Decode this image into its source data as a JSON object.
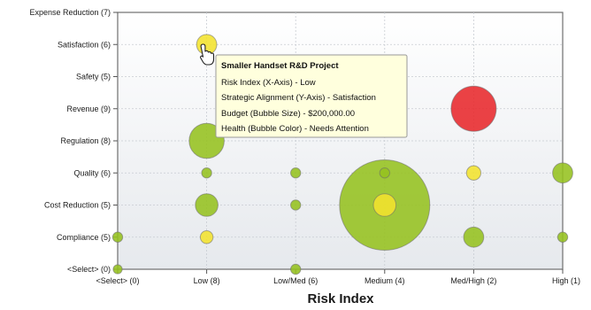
{
  "chart_data": {
    "type": "scatter",
    "title": "",
    "xlabel": "Risk Index",
    "ylabel": "",
    "x_categories": [
      "<Select> (0)",
      "Low (8)",
      "Low/Med (6)",
      "Medium (4)",
      "Med/High (2)",
      "High (1)"
    ],
    "y_categories": [
      "<Select> (0)",
      "Compliance (5)",
      "Cost Reduction (5)",
      "Quality (6)",
      "Regulation (8)",
      "Revenue (9)",
      "Safety (5)",
      "Satisfaction (6)",
      "Expense Reduction (7)"
    ],
    "grid": true,
    "bubbles": [
      {
        "x": "Low (8)",
        "y": "Satisfaction (6)",
        "size": 2,
        "color": "#f2e22e"
      },
      {
        "x": "Low (8)",
        "y": "Regulation (8)",
        "size": 6,
        "color": "#95c11f"
      },
      {
        "x": "Low (8)",
        "y": "Quality (6)",
        "size": 0.5,
        "color": "#95c11f"
      },
      {
        "x": "Low (8)",
        "y": "Cost Reduction (5)",
        "size": 2.5,
        "color": "#95c11f"
      },
      {
        "x": "Low (8)",
        "y": "Compliance (5)",
        "size": 0.8,
        "color": "#f2e22e"
      },
      {
        "x": "<Select> (0)",
        "y": "Compliance (5)",
        "size": 0.5,
        "color": "#95c11f"
      },
      {
        "x": "<Select> (0)",
        "y": "<Select> (0)",
        "size": 0.4,
        "color": "#95c11f"
      },
      {
        "x": "Low/Med (6)",
        "y": "Quality (6)",
        "size": 0.5,
        "color": "#95c11f"
      },
      {
        "x": "Low/Med (6)",
        "y": "Cost Reduction (5)",
        "size": 0.5,
        "color": "#95c11f"
      },
      {
        "x": "Low/Med (6)",
        "y": "<Select> (0)",
        "size": 0.5,
        "color": "#95c11f"
      },
      {
        "x": "Medium (4)",
        "y": "Cost Reduction (5)",
        "size": 40,
        "color": "#95c11f"
      },
      {
        "x": "Medium (4)",
        "y": "Cost Reduction (5)",
        "size": 2.5,
        "color": "#f2e22e"
      },
      {
        "x": "Medium (4)",
        "y": "Quality (6)",
        "size": 0.5,
        "color": "#95c11f"
      },
      {
        "x": "Med/High (2)",
        "y": "Revenue (9)",
        "size": 10,
        "color": "#e8282b"
      },
      {
        "x": "Med/High (2)",
        "y": "Quality (6)",
        "size": 1,
        "color": "#f2e22e"
      },
      {
        "x": "Med/High (2)",
        "y": "Compliance (5)",
        "size": 2,
        "color": "#95c11f"
      },
      {
        "x": "High (1)",
        "y": "Quality (6)",
        "size": 2,
        "color": "#95c11f"
      },
      {
        "x": "High (1)",
        "y": "Compliance (5)",
        "size": 0.5,
        "color": "#95c11f"
      }
    ],
    "tooltip": {
      "title": "Smaller Handset R&D Project",
      "lines": [
        "Risk Index (X-Axis) - Low",
        "Strategic Alignment (Y-Axis) - Satisfaction",
        "Budget (Bubble Size) - $200,000.00",
        "Health (Bubble Color) - Needs Attention"
      ]
    }
  },
  "colors": {
    "plot_bg_top": "#ffffff",
    "plot_bg_bottom": "#e6e9ed",
    "grid": "#c8ccd2",
    "tooltip_bg": "#ffffdd",
    "tooltip_border": "#999999"
  },
  "cursor_icon": "hand-pointer-icon"
}
